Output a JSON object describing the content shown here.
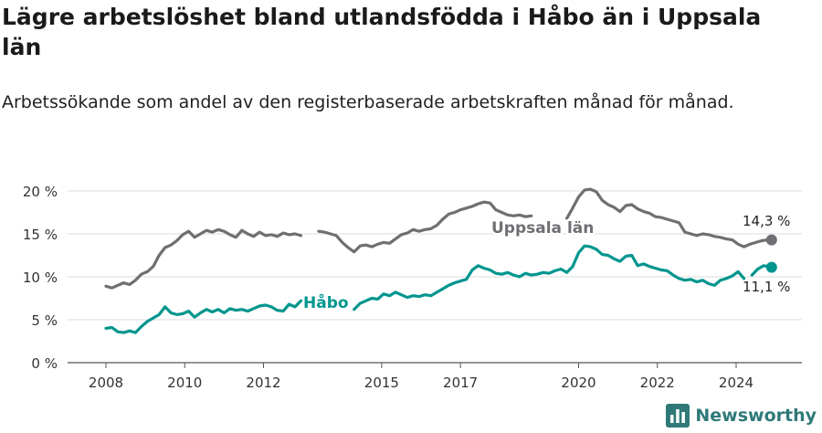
{
  "header": {
    "title": "Lägre arbetslöshet bland utlandsfödda i Håbo än i Uppsala län",
    "subtitle": "Arbetssökande som andel av den registerbaserade arbetskraften månad för månad."
  },
  "brand": {
    "name": "Newsworthy",
    "icon": "newsworthy-logo-icon",
    "color": "#2f7a78"
  },
  "chart_data": {
    "type": "line",
    "title": "Lägre arbetslöshet bland utlandsfödda i Håbo än i Uppsala län",
    "subtitle": "Arbetssökande som andel av den registerbaserade arbetskraften månad för månad.",
    "xlabel": "",
    "ylabel": "",
    "xlim": [
      2007.5,
      2025.6
    ],
    "ylim": [
      0,
      20
    ],
    "x_ticks": [
      2008,
      2010,
      2012,
      2015,
      2017,
      2020,
      2022,
      2024
    ],
    "x_tick_labels": [
      "2008",
      "2010",
      "2012",
      "2015",
      "2017",
      "2020",
      "2022",
      "2024"
    ],
    "y_ticks": [
      0,
      5,
      10,
      15,
      20
    ],
    "y_tick_labels": [
      "0 %",
      "5 %",
      "10 %",
      "15 %",
      "20 %"
    ],
    "grid": "horizontal",
    "legend": "none (direct labels on lines)",
    "series": [
      {
        "name": "Uppsala län",
        "color": "#6f6f73",
        "label_color": "#6f6f73",
        "end_label": "14,3 %",
        "segments": [
          {
            "x": [
              2008.0,
              2008.15,
              2008.3,
              2008.45,
              2008.6,
              2008.75,
              2008.9,
              2009.05,
              2009.2,
              2009.35,
              2009.5,
              2009.65,
              2009.8,
              2009.95,
              2010.1,
              2010.25,
              2010.4,
              2010.55,
              2010.7,
              2010.85,
              2011.0,
              2011.15,
              2011.3,
              2011.45,
              2011.6,
              2011.75,
              2011.9,
              2012.05,
              2012.2,
              2012.35,
              2012.5,
              2012.65,
              2012.8,
              2012.95
            ],
            "y": [
              8.9,
              8.7,
              9.0,
              9.3,
              9.1,
              9.6,
              10.3,
              10.6,
              11.2,
              12.5,
              13.4,
              13.7,
              14.2,
              14.9,
              15.3,
              14.6,
              15.0,
              15.4,
              15.2,
              15.5,
              15.3,
              14.9,
              14.6,
              15.4,
              15.0,
              14.7,
              15.2,
              14.8,
              14.9,
              14.7,
              15.1,
              14.9,
              15.0,
              14.8
            ]
          },
          {
            "x": [
              2013.4,
              2013.55,
              2013.7,
              2013.85,
              2014.0,
              2014.15,
              2014.3,
              2014.45,
              2014.6,
              2014.75,
              2014.9,
              2015.05,
              2015.2,
              2015.35,
              2015.5,
              2015.65,
              2015.8,
              2015.95,
              2016.1,
              2016.25,
              2016.4,
              2016.55,
              2016.7,
              2016.85,
              2017.0,
              2017.15,
              2017.3,
              2017.45,
              2017.6,
              2017.75,
              2017.9,
              2018.05,
              2018.2,
              2018.35,
              2018.5,
              2018.65,
              2018.8
            ],
            "y": [
              15.3,
              15.2,
              15.0,
              14.8,
              14.0,
              13.4,
              12.9,
              13.6,
              13.7,
              13.5,
              13.8,
              14.0,
              13.9,
              14.4,
              14.9,
              15.1,
              15.5,
              15.3,
              15.5,
              15.6,
              16.0,
              16.7,
              17.3,
              17.5,
              17.8,
              18.0,
              18.2,
              18.5,
              18.7,
              18.6,
              17.8,
              17.5,
              17.2,
              17.1,
              17.2,
              17.0,
              17.1
            ]
          },
          {
            "x": [
              2019.7,
              2019.85,
              2020.0,
              2020.15,
              2020.3,
              2020.45,
              2020.6,
              2020.75,
              2020.9,
              2021.05,
              2021.2,
              2021.35,
              2021.5,
              2021.65,
              2021.8,
              2021.95,
              2022.1,
              2022.25,
              2022.4,
              2022.55,
              2022.7,
              2022.85,
              2023.0,
              2023.15,
              2023.3,
              2023.45,
              2023.6,
              2023.75,
              2023.9,
              2024.05,
              2024.2,
              2024.35,
              2024.5,
              2024.65,
              2024.8,
              2024.9
            ],
            "y": [
              16.8,
              18.0,
              19.3,
              20.1,
              20.2,
              19.9,
              18.9,
              18.4,
              18.1,
              17.6,
              18.3,
              18.4,
              17.9,
              17.6,
              17.4,
              17.0,
              16.9,
              16.7,
              16.5,
              16.3,
              15.2,
              15.0,
              14.8,
              15.0,
              14.9,
              14.7,
              14.6,
              14.4,
              14.3,
              13.8,
              13.5,
              13.8,
              14.0,
              14.2,
              14.3,
              14.3
            ]
          }
        ]
      },
      {
        "name": "Håbo",
        "color": "#00958e",
        "label_color": "#00958e",
        "end_label": "11,1 %",
        "segments": [
          {
            "x": [
              2008.0,
              2008.15,
              2008.3,
              2008.45,
              2008.6,
              2008.75,
              2008.9,
              2009.05,
              2009.2,
              2009.35,
              2009.5,
              2009.65,
              2009.8,
              2009.95,
              2010.1,
              2010.25,
              2010.4,
              2010.55,
              2010.7,
              2010.85,
              2011.0,
              2011.15,
              2011.3,
              2011.45,
              2011.6,
              2011.75,
              2011.9,
              2012.05,
              2012.2,
              2012.35,
              2012.5,
              2012.65,
              2012.8,
              2012.95
            ],
            "y": [
              4.0,
              4.1,
              3.6,
              3.5,
              3.7,
              3.5,
              4.2,
              4.8,
              5.2,
              5.6,
              6.5,
              5.8,
              5.6,
              5.7,
              6.0,
              5.3,
              5.8,
              6.2,
              5.9,
              6.2,
              5.8,
              6.3,
              6.1,
              6.2,
              6.0,
              6.3,
              6.6,
              6.7,
              6.5,
              6.1,
              6.0,
              6.8,
              6.5,
              7.2
            ]
          },
          {
            "x": [
              2014.3,
              2014.45,
              2014.6,
              2014.75,
              2014.9,
              2015.05,
              2015.2,
              2015.35,
              2015.5,
              2015.65,
              2015.8,
              2015.95,
              2016.1,
              2016.25,
              2016.4,
              2016.55,
              2016.7,
              2016.85,
              2017.0,
              2017.15,
              2017.3,
              2017.45,
              2017.6,
              2017.75,
              2017.9,
              2018.05,
              2018.2,
              2018.35,
              2018.5,
              2018.65,
              2018.8,
              2018.95,
              2019.1,
              2019.25,
              2019.4,
              2019.55,
              2019.7,
              2019.85,
              2020.0,
              2020.15,
              2020.3,
              2020.45,
              2020.6,
              2020.75,
              2020.9,
              2021.05,
              2021.2,
              2021.35,
              2021.5,
              2021.65,
              2021.8,
              2021.95,
              2022.1,
              2022.25,
              2022.4,
              2022.55,
              2022.7,
              2022.85,
              2023.0,
              2023.15,
              2023.3,
              2023.45,
              2023.6,
              2023.75,
              2023.9,
              2024.05,
              2024.2
            ],
            "y": [
              6.2,
              6.9,
              7.2,
              7.5,
              7.4,
              8.0,
              7.8,
              8.2,
              7.9,
              7.6,
              7.8,
              7.7,
              7.9,
              7.8,
              8.2,
              8.6,
              9.0,
              9.3,
              9.5,
              9.7,
              10.8,
              11.3,
              11.0,
              10.8,
              10.4,
              10.3,
              10.5,
              10.2,
              10.0,
              10.4,
              10.2,
              10.3,
              10.5,
              10.4,
              10.7,
              10.9,
              10.5,
              11.2,
              12.8,
              13.6,
              13.5,
              13.2,
              12.6,
              12.5,
              12.1,
              11.8,
              12.4,
              12.5,
              11.3,
              11.5,
              11.2,
              11.0,
              10.8,
              10.7,
              10.2,
              9.8,
              9.6,
              9.7,
              9.4,
              9.6,
              9.2,
              9.0,
              9.6,
              9.8,
              10.1,
              10.6,
              9.8
            ]
          },
          {
            "x": [
              2024.4,
              2024.55,
              2024.7,
              2024.9
            ],
            "y": [
              10.2,
              10.9,
              11.3,
              11.1
            ]
          }
        ]
      }
    ]
  }
}
